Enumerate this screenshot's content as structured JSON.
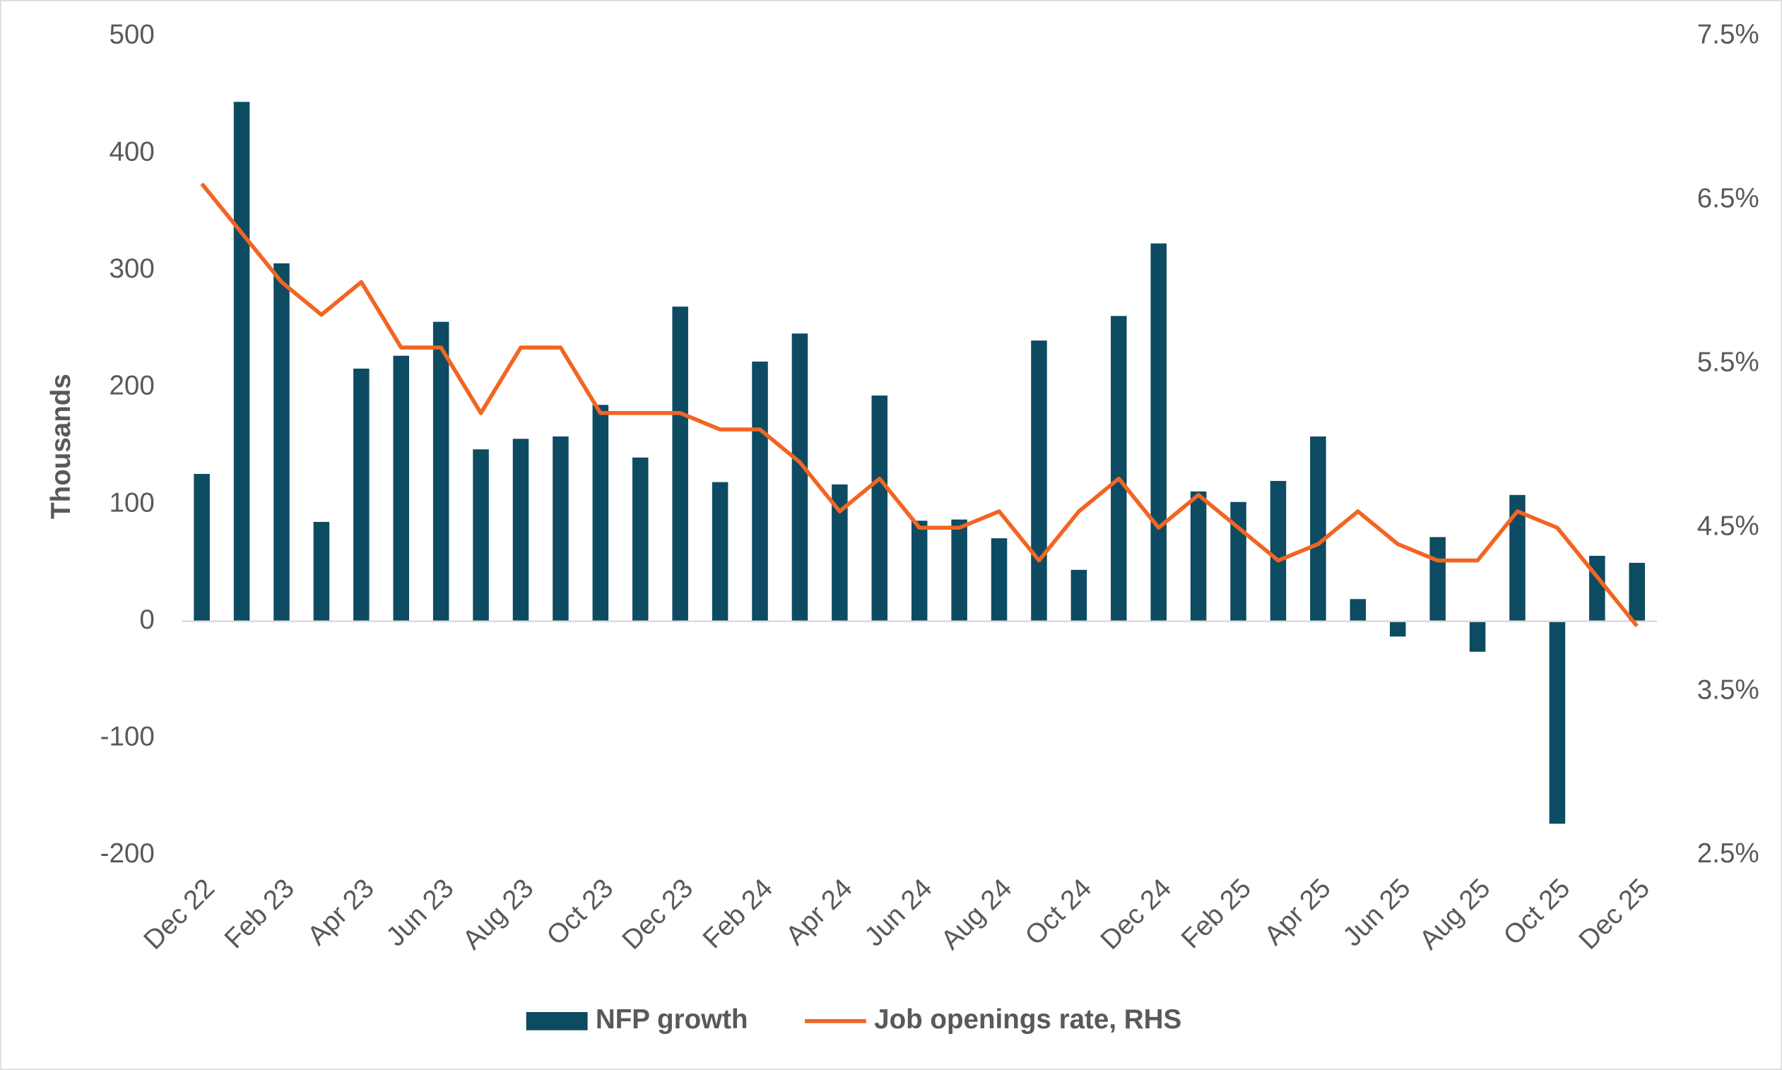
{
  "chart_data": {
    "type": "bar-line",
    "y_label": "Thousands",
    "categories": [
      "Dec 22",
      null,
      "Feb 23",
      null,
      "Apr 23",
      null,
      "Jun 23",
      null,
      "Aug 23",
      null,
      "Oct 23",
      null,
      "Dec 23",
      null,
      "Feb 24",
      null,
      "Apr 24",
      null,
      "Jun 24",
      null,
      "Aug 24",
      null,
      "Oct 24",
      null,
      "Dec 24",
      null,
      "Feb 25",
      null,
      "Apr 25",
      null,
      "Jun 25",
      null,
      "Aug 25",
      null,
      "Oct 25",
      null,
      "Dec 25"
    ],
    "series": [
      {
        "name": "NFP growth",
        "type": "bar",
        "color": "#0d4b62",
        "values": [
          126,
          444,
          306,
          85,
          216,
          227,
          256,
          147,
          156,
          158,
          185,
          140,
          269,
          119,
          222,
          246,
          117,
          193,
          86,
          87,
          71,
          240,
          44,
          261,
          323,
          111,
          102,
          120,
          158,
          19,
          -13,
          72,
          -26,
          108,
          -173,
          56,
          50
        ]
      },
      {
        "name": "Job openings rate, RHS",
        "type": "line",
        "axis": "y2",
        "color": "#f26522",
        "values": [
          6.6,
          6.3,
          6.0,
          5.8,
          6.0,
          5.6,
          5.6,
          5.2,
          5.6,
          5.6,
          5.2,
          5.2,
          5.2,
          5.1,
          5.1,
          4.9,
          4.6,
          4.8,
          4.5,
          4.5,
          4.6,
          4.3,
          4.6,
          4.8,
          4.5,
          4.7,
          4.5,
          4.3,
          4.4,
          4.6,
          4.4,
          4.3,
          4.3,
          4.6,
          4.5,
          4.2,
          3.9
        ]
      }
    ],
    "ylim": [
      -200,
      500
    ],
    "yticks": [
      -200,
      -100,
      0,
      100,
      200,
      300,
      400,
      500
    ],
    "y2lim": [
      2.5,
      7.5
    ],
    "y2ticks": [
      {
        "value": 2.5,
        "label": "2.5%"
      },
      {
        "value": 3.5,
        "label": "3.5%"
      },
      {
        "value": 4.5,
        "label": "4.5%"
      },
      {
        "value": 5.5,
        "label": "5.5%"
      },
      {
        "value": 6.5,
        "label": "6.5%"
      },
      {
        "value": 7.5,
        "label": "7.5%"
      }
    ],
    "grid": false,
    "legend": "bottom"
  }
}
